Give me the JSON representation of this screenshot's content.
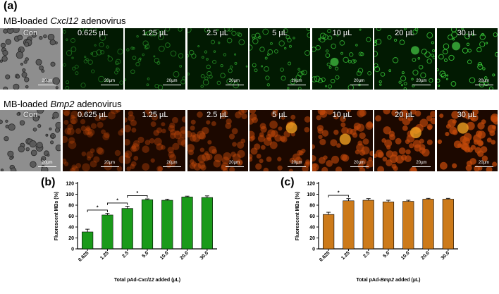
{
  "figure": {
    "panel_a": "(a)",
    "panel_b": "(b)",
    "panel_c": "(c)",
    "rows": [
      {
        "title_prefix": "MB-loaded ",
        "title_gene": "Cxcl12",
        "title_suffix": " adenovirus",
        "tint": "green",
        "tiles": [
          "Con",
          "0.625 µL",
          "1.25 µL",
          "2.5 µL",
          "5 µL",
          "10 µL",
          "20 µL",
          "30 µL"
        ]
      },
      {
        "title_prefix": "MB-loaded ",
        "title_gene": "Bmp2",
        "title_suffix": " adenovirus",
        "tint": "orange",
        "tiles": [
          "Con",
          "0.625 µL",
          "1.25 µL",
          "2.5 µL",
          "5 µL",
          "10 µL",
          "20 µL",
          "30 µL"
        ]
      }
    ],
    "scale_bar": "20µm",
    "colors": {
      "green_bar": "#1a9a1a",
      "orange_bar": "#cc7a1a"
    }
  },
  "chart_data": [
    {
      "type": "bar",
      "panel": "(b)",
      "categories": [
        "0.625",
        "1.25",
        "2.5",
        "5.0",
        "10.0",
        "20.0",
        "30.0"
      ],
      "values": [
        31,
        62,
        74,
        90,
        89,
        95,
        94
      ],
      "errors": [
        5,
        3,
        4,
        1.5,
        2,
        1.5,
        3
      ],
      "ylabel": "Fluorescent MBs (%)",
      "xlabel_prefix": "Total pAd-",
      "xlabel_gene": "Cxcl12",
      "xlabel_suffix": " added (µL)",
      "ylim": [
        0,
        120
      ],
      "yticks": [
        0,
        20,
        40,
        60,
        80,
        100,
        120
      ],
      "significance": [
        [
          0,
          1,
          "*"
        ],
        [
          1,
          2,
          "*"
        ],
        [
          2,
          3,
          "*"
        ]
      ],
      "color": "#1a9a1a"
    },
    {
      "type": "bar",
      "panel": "(c)",
      "categories": [
        "0.625",
        "1.25",
        "2.5",
        "5.0",
        "10.0",
        "20.0",
        "30.0"
      ],
      "values": [
        63,
        88,
        89,
        86,
        87,
        91,
        91
      ],
      "errors": [
        4,
        4,
        3,
        3,
        2,
        1.5,
        1.5
      ],
      "ylabel": "Fluorescent MBs (%)",
      "xlabel_prefix": "Total pAd-",
      "xlabel_gene": "Bmp2",
      "xlabel_suffix": " added (µL)",
      "ylim": [
        0,
        120
      ],
      "yticks": [
        0,
        20,
        40,
        60,
        80,
        100,
        120
      ],
      "significance": [
        [
          0,
          1,
          "*"
        ]
      ],
      "color": "#cc7a1a"
    }
  ]
}
